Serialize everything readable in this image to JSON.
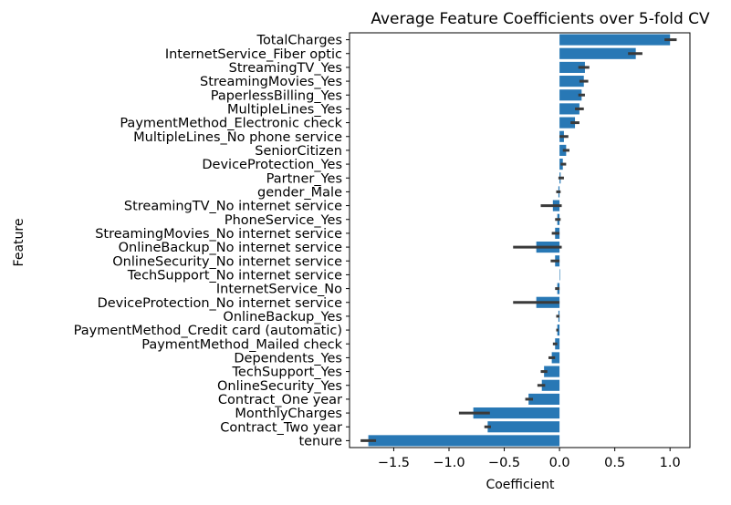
{
  "chart_data": {
    "type": "bar",
    "orientation": "horizontal",
    "title": "Average Feature Coefficients over 5-fold CV",
    "xlabel": "Coefficient",
    "ylabel": "Feature",
    "xlim": [
      -1.9,
      1.18
    ],
    "xticks": [
      -1.5,
      -1.0,
      -0.5,
      0.0,
      0.5,
      1.0
    ],
    "xtick_labels": [
      "−1.5",
      "−1.0",
      "−0.5",
      "0.0",
      "0.5",
      "1.0"
    ],
    "bar_color": "#2878b5",
    "error_color": "#3a3a3a",
    "grid": false,
    "categories": [
      "TotalCharges",
      "InternetService_Fiber optic",
      "StreamingTV_Yes",
      "StreamingMovies_Yes",
      "PaperlessBilling_Yes",
      "MultipleLines_Yes",
      "PaymentMethod_Electronic check",
      "MultipleLines_No phone service",
      "SeniorCitizen",
      "DeviceProtection_Yes",
      "Partner_Yes",
      "gender_Male",
      "StreamingTV_No internet service",
      "PhoneService_Yes",
      "StreamingMovies_No internet service",
      "OnlineBackup_No internet service",
      "OnlineSecurity_No internet service",
      "TechSupport_No internet service",
      "InternetService_No",
      "DeviceProtection_No internet service",
      "OnlineBackup_Yes",
      "PaymentMethod_Credit card (automatic)",
      "PaymentMethod_Mailed check",
      "Dependents_Yes",
      "TechSupport_Yes",
      "OnlineSecurity_Yes",
      "Contract_One year",
      "MonthlyCharges",
      "Contract_Two year",
      "tenure"
    ],
    "values": [
      1.0,
      0.69,
      0.23,
      0.22,
      0.2,
      0.18,
      0.14,
      0.04,
      0.06,
      0.03,
      0.01,
      -0.01,
      -0.06,
      -0.02,
      -0.04,
      -0.21,
      -0.04,
      0.0,
      -0.02,
      -0.21,
      -0.01,
      -0.02,
      -0.04,
      -0.07,
      -0.14,
      -0.16,
      -0.28,
      -0.78,
      -0.65,
      -1.73
    ],
    "error_low": [
      0.95,
      0.62,
      0.17,
      0.18,
      0.17,
      0.14,
      0.1,
      0.0,
      0.03,
      0.01,
      -0.01,
      -0.03,
      -0.17,
      -0.04,
      -0.07,
      -0.42,
      -0.08,
      0.0,
      -0.04,
      -0.42,
      -0.03,
      -0.03,
      -0.06,
      -0.1,
      -0.17,
      -0.2,
      -0.31,
      -0.91,
      -0.68,
      -1.8
    ],
    "error_high": [
      1.06,
      0.75,
      0.27,
      0.26,
      0.23,
      0.22,
      0.18,
      0.08,
      0.09,
      0.06,
      0.04,
      0.01,
      0.02,
      0.01,
      0.0,
      0.02,
      0.0,
      0.0,
      0.0,
      0.0,
      0.0,
      -0.01,
      -0.02,
      -0.04,
      -0.11,
      -0.13,
      -0.24,
      -0.63,
      -0.62,
      -1.66
    ]
  }
}
